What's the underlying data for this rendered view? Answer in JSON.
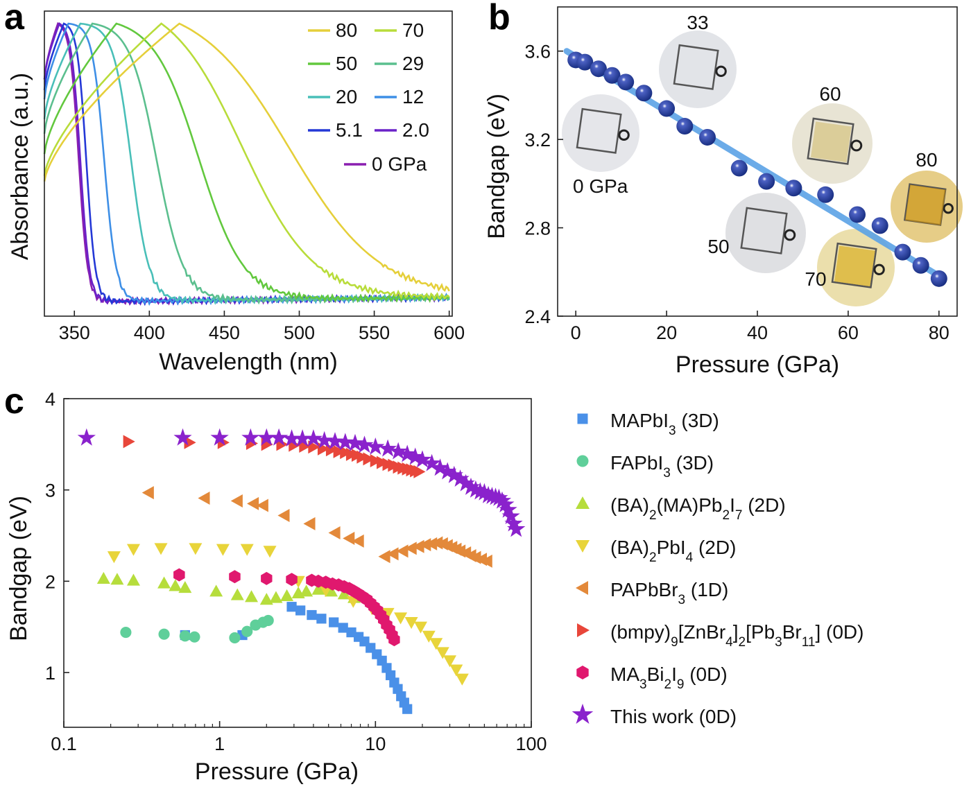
{
  "chart_data": [
    {
      "panel": "a",
      "type": "line",
      "xlabel": "Wavelength (nm)",
      "ylabel": "Absorbance (a.u.)",
      "xlim": [
        330,
        602
      ],
      "xticks": [
        350,
        400,
        450,
        500,
        550,
        600
      ],
      "series": [
        {
          "name": "80",
          "color": "#e5cf3a",
          "edge": 494,
          "peak": 420,
          "width": 30
        },
        {
          "name": "70",
          "color": "#b8dc3a",
          "edge": 462,
          "peak": 408,
          "width": 24
        },
        {
          "name": "50",
          "color": "#62c83e",
          "edge": 433,
          "peak": 378,
          "width": 15
        },
        {
          "name": "29",
          "color": "#5bbf8e",
          "edge": 405,
          "peak": 362,
          "width": 9
        },
        {
          "name": "20",
          "color": "#49bfb8",
          "edge": 388,
          "peak": 354,
          "width": 6
        },
        {
          "name": "12",
          "color": "#3e8fe6",
          "edge": 370,
          "peak": 346,
          "width": 4
        },
        {
          "name": "5.1",
          "color": "#2438d6",
          "edge": 358,
          "peak": 343,
          "width": 3
        },
        {
          "name": "2.0",
          "color": "#6a22c8",
          "edge": 354,
          "peak": 340,
          "width": 3
        },
        {
          "name": "0 GPa",
          "color": "#8a1fb0",
          "edge": 353,
          "peak": 339,
          "width": 3
        }
      ]
    },
    {
      "panel": "b",
      "type": "scatter",
      "xlabel": "Pressure (GPa)",
      "ylabel": "Bandgap (eV)",
      "xlim": [
        -4,
        84
      ],
      "ylim": [
        2.4,
        3.8
      ],
      "xticks": [
        0,
        20,
        40,
        60,
        80
      ],
      "yticks": [
        2.4,
        2.8,
        3.2,
        3.6
      ],
      "points": {
        "x": [
          0,
          2,
          5,
          8,
          11,
          15,
          20,
          24,
          29,
          36,
          42,
          48,
          55,
          62,
          67,
          72,
          76,
          80
        ],
        "y": [
          3.56,
          3.55,
          3.52,
          3.49,
          3.46,
          3.41,
          3.34,
          3.26,
          3.21,
          3.07,
          3.01,
          2.98,
          2.95,
          2.86,
          2.81,
          2.69,
          2.63,
          2.57
        ]
      },
      "fit": {
        "x": [
          -2,
          81
        ],
        "y": [
          3.6,
          2.57
        ]
      },
      "annotations": [
        "0 GPa",
        "33",
        "60",
        "50",
        "70",
        "80"
      ]
    },
    {
      "panel": "c",
      "type": "scatter",
      "xscale": "log",
      "xlabel": "Pressure (GPa)",
      "ylabel": "Bandgap (eV)",
      "xlim": [
        0.1,
        100
      ],
      "ylim": [
        0.4,
        4.0
      ],
      "xticks": [
        "0.1",
        "1",
        "10",
        "100"
      ],
      "yticks": [
        1,
        2,
        3,
        4
      ],
      "series": [
        {
          "legend": "MAPbI3 (3D)",
          "color": "#4a90e8",
          "marker": "square",
          "x": [
            0.6,
            1.4,
            2.9,
            3.3,
            3.9,
            4.5,
            5.4,
            6.2,
            7.0,
            7.8,
            8.5,
            9.3,
            10.2,
            11.0,
            11.8,
            12.5,
            13.2,
            13.9,
            14.6,
            15.3,
            16.0
          ],
          "y": [
            1.41,
            1.41,
            1.72,
            1.68,
            1.63,
            1.59,
            1.55,
            1.49,
            1.44,
            1.39,
            1.34,
            1.27,
            1.2,
            1.13,
            1.05,
            0.97,
            0.89,
            0.82,
            0.74,
            0.67,
            0.6
          ]
        },
        {
          "legend": "FAPbI3 (3D)",
          "color": "#5fcf9a",
          "marker": "circle",
          "x": [
            0.25,
            0.44,
            0.6,
            0.69,
            1.25,
            1.5,
            1.7,
            1.9,
            2.05
          ],
          "y": [
            1.44,
            1.42,
            1.4,
            1.39,
            1.38,
            1.45,
            1.52,
            1.55,
            1.57
          ]
        },
        {
          "legend": "(BA)2(MA)Pb2I7 (2D)",
          "color": "#b6dd3c",
          "marker": "triangle-up",
          "x": [
            0.18,
            0.22,
            0.28,
            0.44,
            0.52,
            0.6,
            0.95,
            1.3,
            1.6,
            2.0,
            2.3,
            2.7,
            3.2,
            3.6,
            4.3,
            5.2,
            6.3,
            7.3
          ],
          "y": [
            2.03,
            2.02,
            2.01,
            1.98,
            1.95,
            1.93,
            1.89,
            1.85,
            1.83,
            1.8,
            1.82,
            1.84,
            1.87,
            1.89,
            1.91,
            1.89,
            1.86,
            1.82
          ]
        },
        {
          "legend": "(BA)2PbI4 (2D)",
          "color": "#e8d43a",
          "marker": "triangle-down",
          "x": [
            0.21,
            0.28,
            0.42,
            0.7,
            1.05,
            1.5,
            2.1,
            3.2,
            4.8,
            7.2,
            9.5,
            12.0,
            14.5,
            17.0,
            19.5,
            22.0,
            24.5,
            27.0,
            30.0,
            33.0,
            36.0
          ],
          "y": [
            2.27,
            2.35,
            2.36,
            2.36,
            2.35,
            2.35,
            2.33,
            2.0,
            1.9,
            1.78,
            1.7,
            1.65,
            1.6,
            1.55,
            1.5,
            1.4,
            1.32,
            1.22,
            1.13,
            1.03,
            0.93
          ]
        },
        {
          "legend": "PAPbBr3 (1D)",
          "color": "#e3893a",
          "marker": "triangle-left",
          "x": [
            0.35,
            0.8,
            1.3,
            1.65,
            1.9,
            2.6,
            3.8,
            5.5,
            6.8,
            7.8,
            11.5,
            13,
            15,
            17,
            19,
            21,
            23,
            25,
            27,
            29,
            31,
            33,
            35,
            38,
            41,
            44,
            48,
            52
          ],
          "y": [
            2.97,
            2.91,
            2.88,
            2.85,
            2.83,
            2.72,
            2.63,
            2.53,
            2.47,
            2.44,
            2.27,
            2.3,
            2.33,
            2.36,
            2.38,
            2.4,
            2.41,
            2.42,
            2.41,
            2.39,
            2.37,
            2.35,
            2.33,
            2.31,
            2.28,
            2.26,
            2.24,
            2.22
          ]
        },
        {
          "legend": "(bmpy)9[ZnBr4]2[Pb3Br11] (0D)",
          "color": "#e8463a",
          "marker": "triangle-right",
          "x": [
            0.26,
            0.64,
            1.05,
            1.6,
            2.0,
            2.5,
            3.0,
            3.5,
            4.0,
            4.6,
            5.2,
            5.8,
            6.4,
            7.0,
            7.6,
            8.2,
            9.0,
            10.0,
            11.0,
            12.0,
            13.0,
            14.0,
            15.0,
            16.0,
            17.0,
            18.0,
            19.0
          ],
          "y": [
            3.53,
            3.52,
            3.52,
            3.51,
            3.5,
            3.5,
            3.49,
            3.48,
            3.47,
            3.45,
            3.44,
            3.42,
            3.41,
            3.39,
            3.38,
            3.36,
            3.34,
            3.32,
            3.3,
            3.28,
            3.27,
            3.25,
            3.24,
            3.23,
            3.22,
            3.21,
            3.2
          ]
        },
        {
          "legend": "MA3Bi2I9 (0D)",
          "color": "#e0186e",
          "marker": "hexagon",
          "x": [
            0.55,
            1.25,
            2.0,
            2.9,
            3.9,
            4.3,
            4.8,
            5.3,
            5.8,
            6.3,
            6.8,
            7.3,
            7.8,
            8.3,
            8.8,
            9.3,
            9.8,
            10.3,
            10.8,
            11.3,
            11.8,
            12.3,
            12.8,
            13.2
          ],
          "y": [
            2.07,
            2.05,
            2.03,
            2.02,
            2.01,
            2.0,
            1.99,
            1.97,
            1.96,
            1.94,
            1.92,
            1.89,
            1.86,
            1.83,
            1.8,
            1.76,
            1.72,
            1.68,
            1.63,
            1.58,
            1.52,
            1.47,
            1.41,
            1.36
          ]
        },
        {
          "legend": "This work (0D)",
          "color": "#8a22cc",
          "marker": "star",
          "x": [
            0.14,
            0.58,
            1.0,
            1.58,
            2.0,
            2.4,
            2.9,
            3.4,
            4.0,
            4.7,
            5.5,
            6.4,
            7.4,
            8.5,
            10.0,
            12,
            14,
            16,
            18,
            20,
            23,
            26,
            29,
            32,
            35,
            38,
            41,
            44,
            47,
            50,
            53,
            56,
            59,
            62,
            65,
            68,
            71,
            74,
            77,
            80
          ],
          "y": [
            3.57,
            3.57,
            3.57,
            3.57,
            3.57,
            3.57,
            3.56,
            3.56,
            3.56,
            3.54,
            3.53,
            3.52,
            3.51,
            3.49,
            3.47,
            3.45,
            3.42,
            3.39,
            3.36,
            3.33,
            3.29,
            3.24,
            3.2,
            3.16,
            3.12,
            3.07,
            3.03,
            3.0,
            2.98,
            2.97,
            2.94,
            2.93,
            2.92,
            2.91,
            2.88,
            2.84,
            2.78,
            2.71,
            2.63,
            2.57
          ]
        }
      ]
    }
  ],
  "legend_c": [
    {
      "base": "MAPbI",
      "sub": "3",
      "rest": " (3D)"
    },
    {
      "base": "FAPbI",
      "sub": "3",
      "rest": " (3D)"
    },
    {
      "parts": [
        "(BA)",
        "2",
        "(MA)Pb",
        "2",
        "I",
        "7",
        " (2D)"
      ]
    },
    {
      "parts": [
        "(BA)",
        "2",
        "PbI",
        "4",
        " (2D)"
      ]
    },
    {
      "parts": [
        "PAPbBr",
        "3",
        " (1D)"
      ]
    },
    {
      "parts": [
        "(bmpy)",
        "9",
        "[ZnBr",
        "4",
        "]",
        "2",
        "[Pb",
        "3",
        "Br",
        "11",
        "] (0D)"
      ]
    },
    {
      "parts": [
        "MA",
        "3",
        "Bi",
        "2",
        "I",
        "9",
        " (0D)"
      ]
    },
    {
      "parts": [
        "This work (0D)"
      ]
    }
  ],
  "panel_labels": [
    "a",
    "b",
    "c"
  ]
}
